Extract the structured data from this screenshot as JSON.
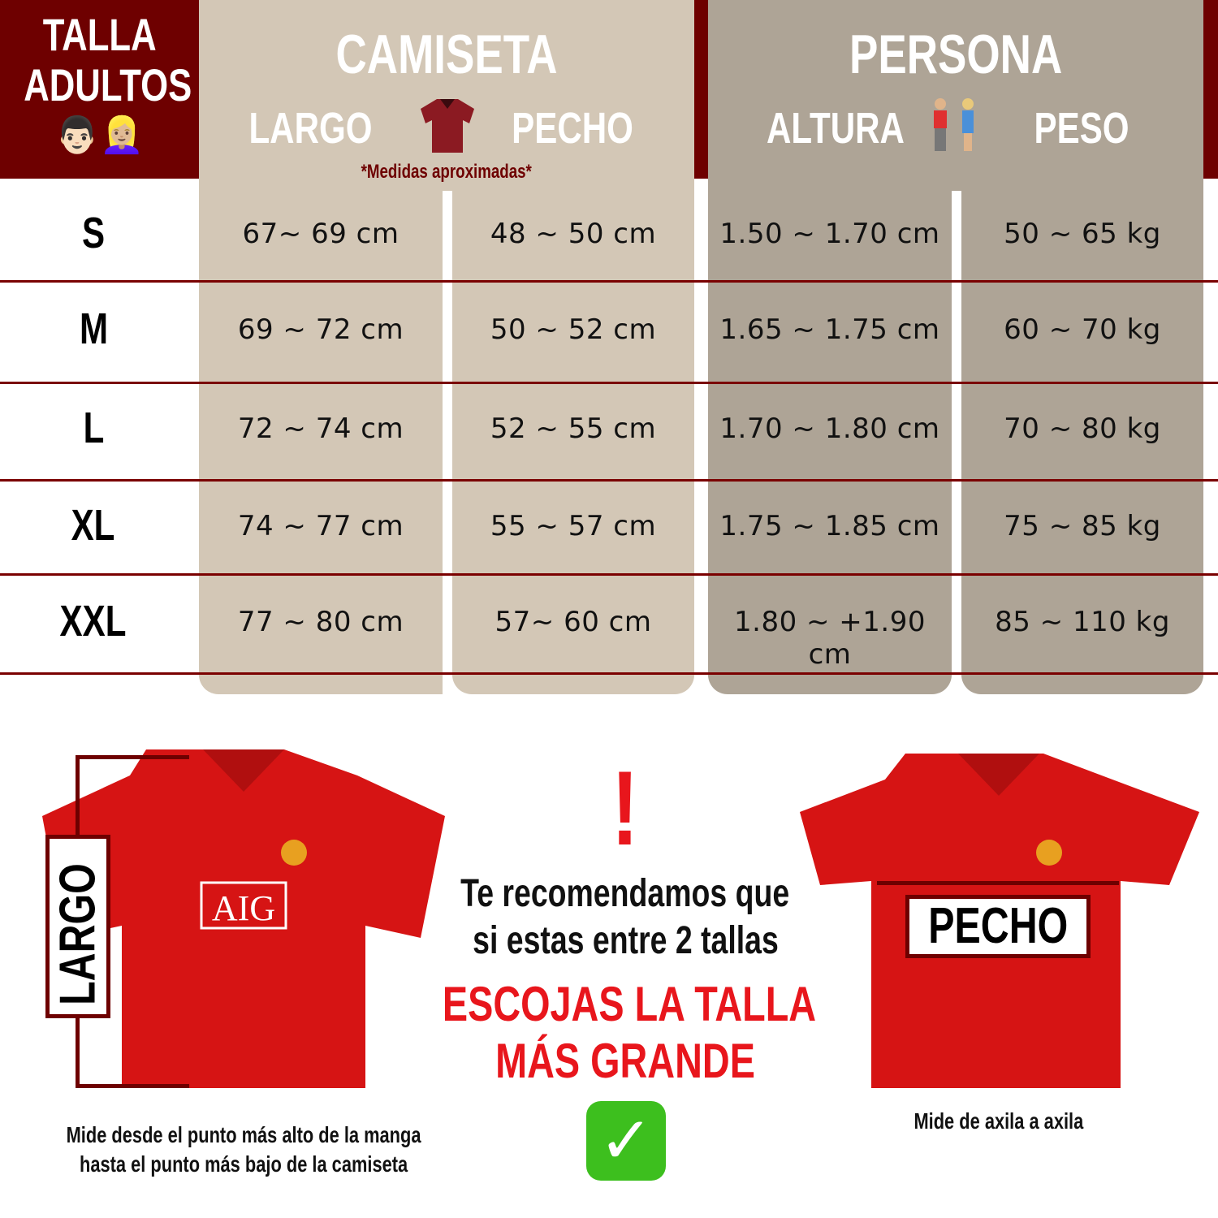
{
  "header": {
    "title_line1": "TALLA",
    "title_line2": "ADULTOS",
    "people_emoji": "👨🏻👱🏼‍♀️",
    "camiseta": {
      "title": "CAMISETA",
      "col1": "LARGO",
      "col2": "PECHO",
      "icon": "polo-shirt-icon",
      "note": "*Medidas aproximadas*"
    },
    "persona": {
      "title": "PERSONA",
      "col1": "ALTURA",
      "col2": "PESO",
      "icon": "couple-icon"
    }
  },
  "rows": [
    {
      "size": "S",
      "largo": "67~ 69 cm",
      "pecho": "48 ~ 50 cm",
      "altura": "1.50 ~ 1.70 cm",
      "peso": "50 ~ 65 kg"
    },
    {
      "size": "M",
      "largo": "69 ~ 72 cm",
      "pecho": "50 ~ 52 cm",
      "altura": "1.65 ~ 1.75 cm",
      "peso": "60 ~ 70 kg"
    },
    {
      "size": "L",
      "largo": "72 ~ 74 cm",
      "pecho": "52 ~ 55 cm",
      "altura": "1.70 ~ 1.80 cm",
      "peso": "70 ~ 80 kg"
    },
    {
      "size": "XL",
      "largo": "74 ~ 77 cm",
      "pecho": "55 ~ 57 cm",
      "altura": "1.75 ~ 1.85 cm",
      "peso": "75 ~ 85 kg"
    },
    {
      "size": "XXL",
      "largo": "77 ~ 80 cm",
      "pecho": "57~ 60 cm",
      "altura": "1.80 ~ +1.90 cm",
      "peso": "85 ~ 110 kg"
    }
  ],
  "bottom": {
    "largo_label": "LARGO",
    "largo_caption_1": "Mide desde el punto más alto de la manga",
    "largo_caption_2": "hasta el punto más bajo de la camiseta",
    "pecho_label": "PECHO",
    "pecho_caption": "Mide de axila a axila",
    "shirt_sponsor": "AIG",
    "exclamation": "!",
    "recommend_1": "Te recomendamos que",
    "recommend_2": "si estas entre 2 tallas",
    "highlight_1": "ESCOJAS LA TALLA",
    "highlight_2": "MÁS GRANDE",
    "check": "✓"
  },
  "colors": {
    "dark_red": "#6e0000",
    "camiseta_bg": "#d3c7b6",
    "persona_bg": "#aea496",
    "shirt_red": "#d61414",
    "highlight_red": "#e8161c",
    "check_green": "#3dbf1e"
  }
}
